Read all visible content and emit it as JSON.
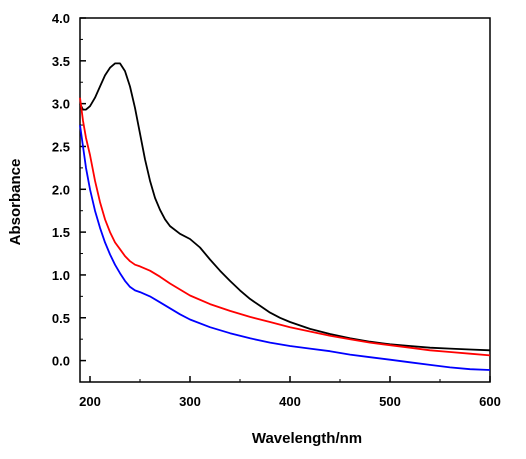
{
  "chart_data": {
    "type": "line",
    "title": "",
    "xlabel": "Wavelength/nm",
    "ylabel": "Absorbance",
    "xlim": [
      190,
      600
    ],
    "ylim": [
      -0.25,
      4.0
    ],
    "x_ticks": [
      200,
      300,
      400,
      500,
      600
    ],
    "y_ticks": [
      "0.0",
      "0.5",
      "1.0",
      "1.5",
      "2.0",
      "2.5",
      "3.0",
      "3.5",
      "4.0"
    ],
    "grid": false,
    "legend": "none",
    "series": [
      {
        "color": "#000000",
        "points": [
          [
            190,
            3.0
          ],
          [
            193,
            2.93
          ],
          [
            196,
            2.93
          ],
          [
            200,
            2.97
          ],
          [
            205,
            3.07
          ],
          [
            210,
            3.2
          ],
          [
            215,
            3.33
          ],
          [
            220,
            3.42
          ],
          [
            225,
            3.47
          ],
          [
            230,
            3.47
          ],
          [
            235,
            3.38
          ],
          [
            240,
            3.2
          ],
          [
            245,
            2.95
          ],
          [
            250,
            2.65
          ],
          [
            255,
            2.35
          ],
          [
            260,
            2.1
          ],
          [
            265,
            1.9
          ],
          [
            270,
            1.76
          ],
          [
            275,
            1.65
          ],
          [
            280,
            1.57
          ],
          [
            290,
            1.48
          ],
          [
            300,
            1.42
          ],
          [
            310,
            1.32
          ],
          [
            320,
            1.18
          ],
          [
            330,
            1.05
          ],
          [
            340,
            0.93
          ],
          [
            350,
            0.82
          ],
          [
            360,
            0.72
          ],
          [
            370,
            0.64
          ],
          [
            380,
            0.56
          ],
          [
            390,
            0.5
          ],
          [
            400,
            0.45
          ],
          [
            420,
            0.37
          ],
          [
            440,
            0.31
          ],
          [
            460,
            0.26
          ],
          [
            480,
            0.22
          ],
          [
            500,
            0.19
          ],
          [
            520,
            0.17
          ],
          [
            540,
            0.15
          ],
          [
            560,
            0.14
          ],
          [
            580,
            0.13
          ],
          [
            600,
            0.12
          ]
        ]
      },
      {
        "color": "#ff0000",
        "points": [
          [
            190,
            3.07
          ],
          [
            193,
            2.8
          ],
          [
            196,
            2.6
          ],
          [
            200,
            2.4
          ],
          [
            205,
            2.1
          ],
          [
            210,
            1.85
          ],
          [
            215,
            1.65
          ],
          [
            220,
            1.5
          ],
          [
            225,
            1.38
          ],
          [
            230,
            1.3
          ],
          [
            235,
            1.22
          ],
          [
            240,
            1.16
          ],
          [
            245,
            1.12
          ],
          [
            250,
            1.1
          ],
          [
            260,
            1.05
          ],
          [
            270,
            0.98
          ],
          [
            280,
            0.9
          ],
          [
            290,
            0.83
          ],
          [
            300,
            0.76
          ],
          [
            320,
            0.66
          ],
          [
            340,
            0.58
          ],
          [
            360,
            0.51
          ],
          [
            380,
            0.45
          ],
          [
            400,
            0.39
          ],
          [
            420,
            0.34
          ],
          [
            440,
            0.29
          ],
          [
            460,
            0.25
          ],
          [
            480,
            0.21
          ],
          [
            500,
            0.18
          ],
          [
            520,
            0.15
          ],
          [
            540,
            0.12
          ],
          [
            560,
            0.1
          ],
          [
            580,
            0.08
          ],
          [
            600,
            0.06
          ]
        ]
      },
      {
        "color": "#0000ff",
        "points": [
          [
            190,
            2.75
          ],
          [
            193,
            2.5
          ],
          [
            196,
            2.25
          ],
          [
            200,
            2.0
          ],
          [
            205,
            1.75
          ],
          [
            210,
            1.55
          ],
          [
            215,
            1.38
          ],
          [
            220,
            1.24
          ],
          [
            225,
            1.12
          ],
          [
            230,
            1.02
          ],
          [
            235,
            0.93
          ],
          [
            240,
            0.86
          ],
          [
            245,
            0.82
          ],
          [
            250,
            0.8
          ],
          [
            260,
            0.75
          ],
          [
            270,
            0.68
          ],
          [
            280,
            0.61
          ],
          [
            290,
            0.54
          ],
          [
            300,
            0.48
          ],
          [
            320,
            0.39
          ],
          [
            340,
            0.32
          ],
          [
            360,
            0.26
          ],
          [
            380,
            0.21
          ],
          [
            400,
            0.17
          ],
          [
            420,
            0.14
          ],
          [
            440,
            0.11
          ],
          [
            460,
            0.07
          ],
          [
            480,
            0.04
          ],
          [
            500,
            0.01
          ],
          [
            520,
            -0.02
          ],
          [
            540,
            -0.05
          ],
          [
            560,
            -0.08
          ],
          [
            580,
            -0.1
          ],
          [
            600,
            -0.11
          ]
        ]
      }
    ]
  }
}
